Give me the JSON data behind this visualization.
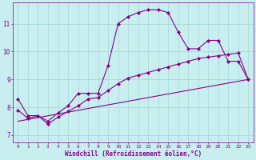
{
  "xlabel": "Windchill (Refroidissement éolien,°C)",
  "background_color": "#c8eef0",
  "grid_color": "#a0d8d0",
  "line_color": "#880088",
  "xlim": [
    -0.5,
    23.5
  ],
  "ylim": [
    6.75,
    11.75
  ],
  "xticks": [
    0,
    1,
    2,
    3,
    4,
    5,
    6,
    7,
    8,
    9,
    10,
    11,
    12,
    13,
    14,
    15,
    16,
    17,
    18,
    19,
    20,
    21,
    22,
    23
  ],
  "yticks": [
    7,
    8,
    9,
    10,
    11
  ],
  "curve1_x": [
    0,
    1,
    2,
    3,
    4,
    5,
    6,
    7,
    8,
    9,
    10,
    11,
    12,
    13,
    14,
    15,
    16,
    17,
    18,
    19,
    20,
    21,
    22,
    23
  ],
  "curve1_y": [
    8.3,
    7.7,
    7.7,
    7.5,
    7.8,
    8.05,
    8.5,
    8.5,
    8.5,
    9.5,
    11.0,
    11.25,
    11.4,
    11.5,
    11.5,
    11.4,
    10.7,
    10.1,
    10.1,
    10.4,
    10.4,
    9.65,
    9.65,
    9.0
  ],
  "curve2_x": [
    0,
    1,
    2,
    3,
    4,
    5,
    6,
    7,
    8,
    9,
    10,
    11,
    12,
    13,
    14,
    15,
    16,
    17,
    18,
    19,
    20,
    21,
    22,
    23
  ],
  "curve2_y": [
    7.9,
    7.6,
    7.7,
    7.4,
    7.65,
    7.85,
    8.05,
    8.3,
    8.35,
    8.6,
    8.85,
    9.05,
    9.15,
    9.25,
    9.35,
    9.45,
    9.55,
    9.65,
    9.75,
    9.8,
    9.85,
    9.9,
    9.95,
    9.0
  ],
  "curve3_x": [
    0,
    23
  ],
  "curve3_y": [
    7.5,
    9.0
  ]
}
